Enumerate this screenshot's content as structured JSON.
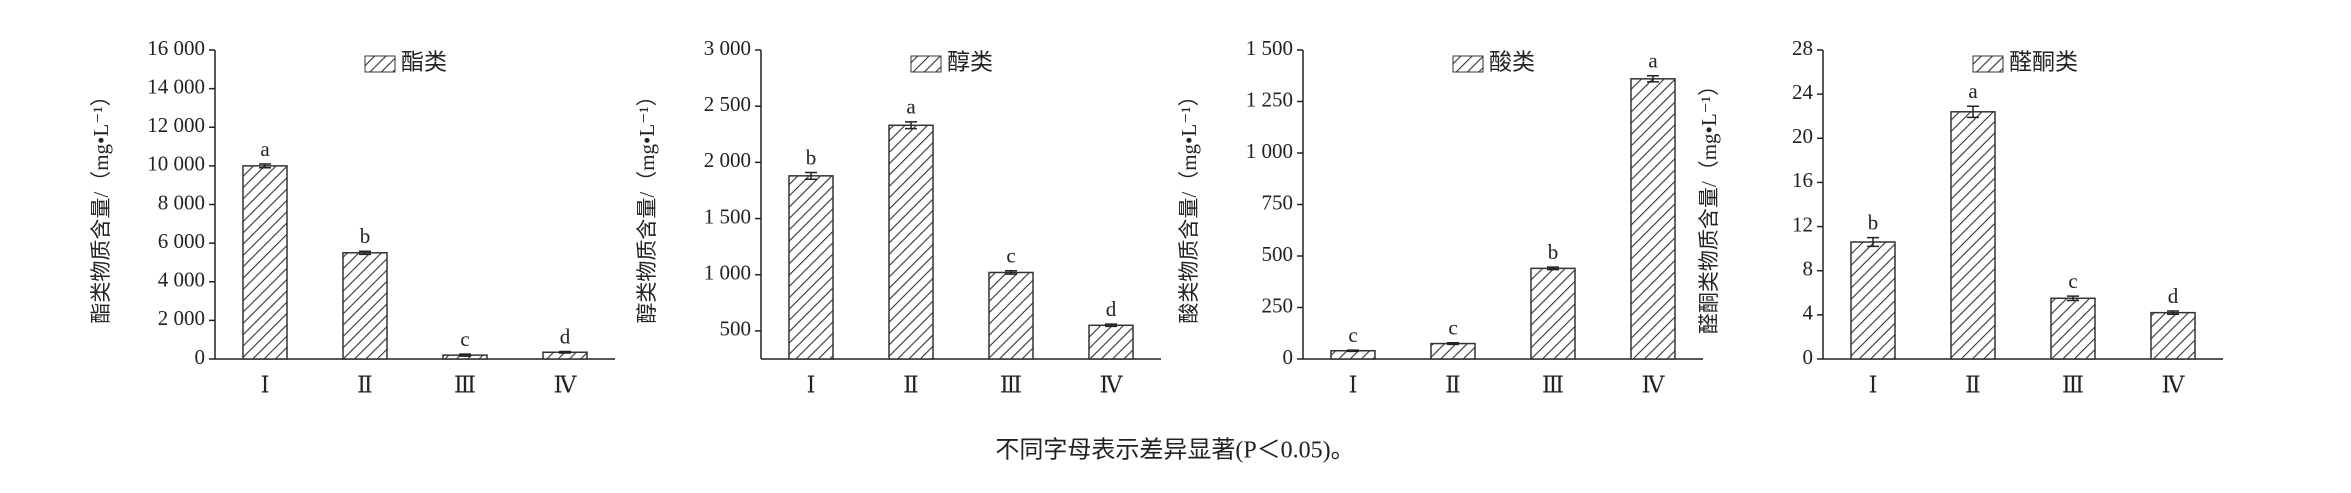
{
  "chart_data": [
    {
      "type": "bar",
      "ylabel": "酯类物质含量/（mg•L⁻¹）",
      "categories": [
        "Ⅰ",
        "Ⅱ",
        "Ⅲ",
        "Ⅳ"
      ],
      "series": [
        {
          "name": "酯类",
          "color": "#333333",
          "values": [
            10000,
            5500,
            200,
            350
          ],
          "errors": [
            100,
            80,
            50,
            40
          ],
          "letters": [
            "a",
            "b",
            "c",
            "d"
          ]
        }
      ],
      "ylim": [
        0,
        16000
      ],
      "yticks": [
        0,
        {
          "value": 2000,
          "label": "2 000"
        },
        {
          "value": 4000,
          "label": "4 000"
        },
        {
          "value": 6000,
          "label": "6 000"
        },
        {
          "value": 8000,
          "label": "8 000"
        },
        {
          "value": 10000,
          "label": "10 000"
        },
        {
          "value": 12000,
          "label": "12 000"
        },
        {
          "value": 14000,
          "label": "14 000"
        },
        {
          "value": 16000,
          "label": "16 000"
        }
      ]
    },
    {
      "type": "bar",
      "ylabel": "醇类物质含量/（mg•L⁻¹）",
      "categories": [
        "Ⅰ",
        "Ⅱ",
        "Ⅲ",
        "Ⅳ"
      ],
      "series": [
        {
          "name": "醇类",
          "color": "#333333",
          "values": [
            1880,
            2330,
            1020,
            550
          ],
          "errors": [
            30,
            30,
            15,
            10
          ],
          "letters": [
            "b",
            "a",
            "c",
            "d"
          ]
        }
      ],
      "ylim": [
        250,
        3000
      ],
      "yticks": [
        500,
        {
          "value": 1000,
          "label": "1 000"
        },
        {
          "value": 1500,
          "label": "1 500"
        },
        {
          "value": 2000,
          "label": "2 000"
        },
        {
          "value": 2500,
          "label": "2 500"
        },
        {
          "value": 3000,
          "label": "3 000"
        }
      ]
    },
    {
      "type": "bar",
      "ylabel": "酸类物质含量/（mg•L⁻¹）",
      "categories": [
        "Ⅰ",
        "Ⅱ",
        "Ⅲ",
        "Ⅳ"
      ],
      "series": [
        {
          "name": "酸类",
          "color": "#333333",
          "values": [
            40,
            75,
            440,
            1360
          ],
          "errors": [
            3,
            4,
            6,
            15
          ],
          "letters": [
            "c",
            "c",
            "b",
            "a"
          ]
        }
      ],
      "ylim": [
        0,
        1500
      ],
      "yticks": [
        0,
        250,
        500,
        750,
        {
          "value": 1000,
          "label": "1 000"
        },
        {
          "value": 1250,
          "label": "1 250"
        },
        {
          "value": 1500,
          "label": "1 500"
        }
      ]
    },
    {
      "type": "bar",
      "ylabel": "醛酮类物质含量/（mg•L⁻¹）",
      "categories": [
        "Ⅰ",
        "Ⅱ",
        "Ⅲ",
        "Ⅳ"
      ],
      "series": [
        {
          "name": "醛酮类",
          "color": "#333333",
          "values": [
            10.6,
            22.4,
            5.5,
            4.2
          ],
          "errors": [
            0.4,
            0.5,
            0.2,
            0.15
          ],
          "letters": [
            "b",
            "a",
            "c",
            "d"
          ]
        }
      ],
      "ylim": [
        0,
        28
      ],
      "yticks": [
        0,
        4,
        8,
        12,
        16,
        20,
        24,
        28
      ]
    }
  ],
  "note": "不同字母表示差异显著(P＜0.05)。"
}
